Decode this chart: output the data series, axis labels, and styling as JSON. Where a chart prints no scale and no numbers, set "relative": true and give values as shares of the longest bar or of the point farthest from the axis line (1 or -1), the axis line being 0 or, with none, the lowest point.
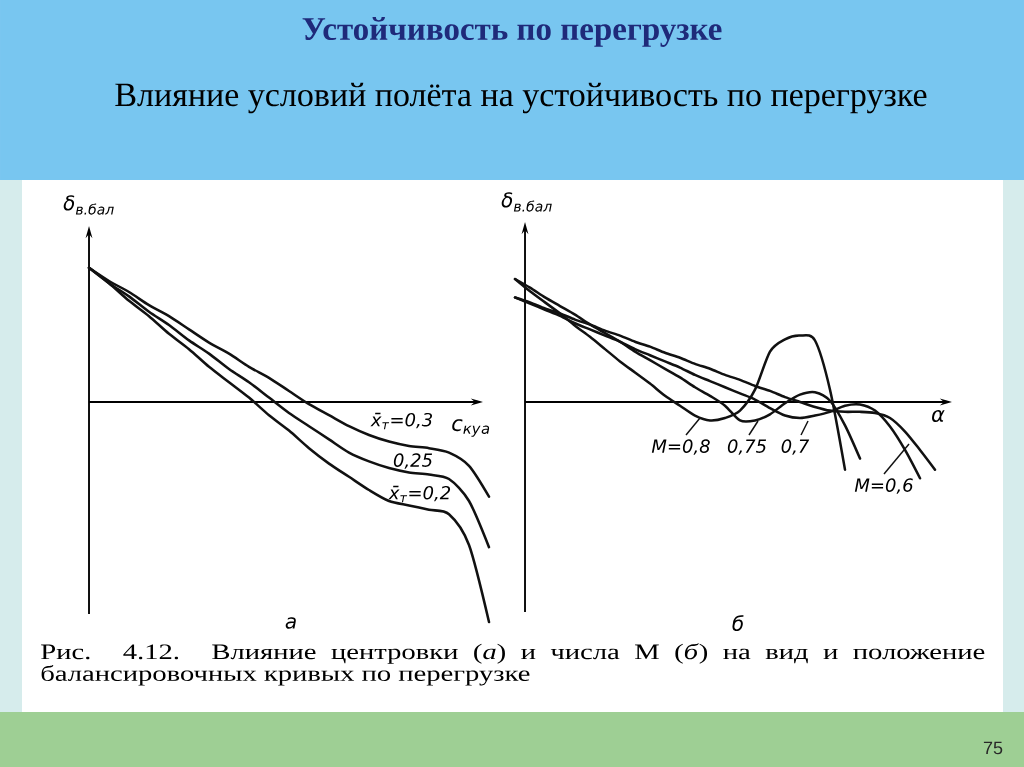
{
  "chart_data": [
    {
      "type": "line",
      "title": "Устойчивость по перегрузке",
      "subtitle": "Влияние условий полёта на устойчивость по перегрузке",
      "xlabel": "c$_{кy}$$_{a}$",
      "ylabel": "δ$_{в.бал}$",
      "relative": true,
      "categories": [
        null,
        null,
        null,
        null,
        null,
        null,
        null,
        null,
        null,
        null,
        null,
        null,
        null,
        null,
        null,
        null,
        null,
        null,
        null,
        null,
        null
      ],
      "series": [
        {
          "name": "x̄$_{т}$=0,3",
          "color": "#111111",
          "values": [
            0.61,
            0.55,
            0.5,
            0.44,
            0.39,
            0.33,
            0.27,
            0.22,
            0.16,
            0.11,
            0.05,
            -0.01,
            -0.06,
            -0.11,
            -0.15,
            -0.18,
            -0.2,
            -0.21,
            -0.23,
            -0.29,
            -0.43
          ]
        },
        {
          "name": "0,25",
          "color": "#111111",
          "values": [
            0.61,
            0.54,
            0.48,
            0.41,
            0.35,
            0.28,
            0.22,
            0.15,
            0.09,
            0.02,
            -0.05,
            -0.11,
            -0.17,
            -0.23,
            -0.27,
            -0.3,
            -0.32,
            -0.33,
            -0.35,
            -0.45,
            -0.66
          ]
        },
        {
          "name": "x̄$_{т}$=0,2",
          "color": "#111111",
          "values": [
            0.61,
            0.54,
            0.46,
            0.39,
            0.31,
            0.24,
            0.16,
            0.09,
            0.02,
            -0.06,
            -0.13,
            -0.21,
            -0.28,
            -0.34,
            -0.4,
            -0.45,
            -0.47,
            -0.49,
            -0.51,
            -0.65,
            -1
          ]
        }
      ],
      "annotations": [
        "а",
        "Рис. 4.12. Влияние центровки (*а*) и числа M (*б*) на вид и положение балансировочных кривых по перегрузке",
        "75"
      ]
    },
    {
      "type": "line",
      "xlabel": "α",
      "ylabel": "δ$_{в.бал}$",
      "relative": true,
      "legend": "bottom",
      "categories": [
        null,
        null,
        null,
        null,
        null,
        null,
        null,
        null,
        null,
        null,
        null,
        null,
        null,
        null,
        null,
        null,
        null,
        null,
        null,
        null,
        null,
        null,
        null,
        null,
        null,
        null,
        null,
        null,
        null
      ],
      "series": [
        {
          "name": "M=0,8",
          "color": "#111111",
          "values": [
            1,
            0.9,
            0.81,
            0.72,
            0.62,
            0.53,
            0.43,
            0.33,
            0.24,
            0.15,
            0.05,
            -0.03,
            -0.11,
            -0.15,
            -0.13,
            -0.07,
            0.1,
            0.41,
            0.51,
            0.54,
            0.5,
            0.1,
            -0.55,
            null,
            null,
            null,
            null,
            null,
            null
          ]
        },
        {
          "name": "0,75",
          "color": "#111111",
          "values": [
            1,
            0.93,
            0.85,
            0.78,
            0.71,
            0.63,
            0.56,
            0.49,
            0.41,
            0.34,
            0.27,
            0.2,
            0.12,
            0.05,
            -0.03,
            -0.15,
            -0.15,
            -0.1,
            -0.01,
            0.06,
            0.08,
            0.01,
            -0.19,
            -0.46,
            null,
            null,
            null,
            null,
            null
          ]
        },
        {
          "name": "0,7",
          "color": "#111111",
          "values": [
            0.85,
            0.8,
            0.75,
            0.7,
            0.64,
            0.59,
            0.54,
            0.49,
            0.43,
            0.38,
            0.33,
            0.28,
            0.22,
            0.17,
            0.12,
            0.07,
            0.02,
            -0.05,
            -0.11,
            -0.13,
            -0.11,
            -0.08,
            -0.03,
            -0.02,
            -0.07,
            -0.2,
            -0.39,
            -0.62,
            null
          ]
        },
        {
          "name": "M=0,6",
          "color": "#111111",
          "values": [
            0.85,
            0.81,
            0.76,
            0.72,
            0.67,
            0.63,
            0.58,
            0.54,
            0.49,
            0.45,
            0.4,
            0.36,
            0.31,
            0.27,
            0.22,
            0.18,
            0.13,
            0.09,
            0.04,
            0,
            -0.04,
            -0.07,
            -0.08,
            -0.08,
            -0.09,
            -0.13,
            -0.24,
            -0.39,
            -0.55
          ]
        }
      ],
      "annotations": [
        "б"
      ]
    }
  ]
}
